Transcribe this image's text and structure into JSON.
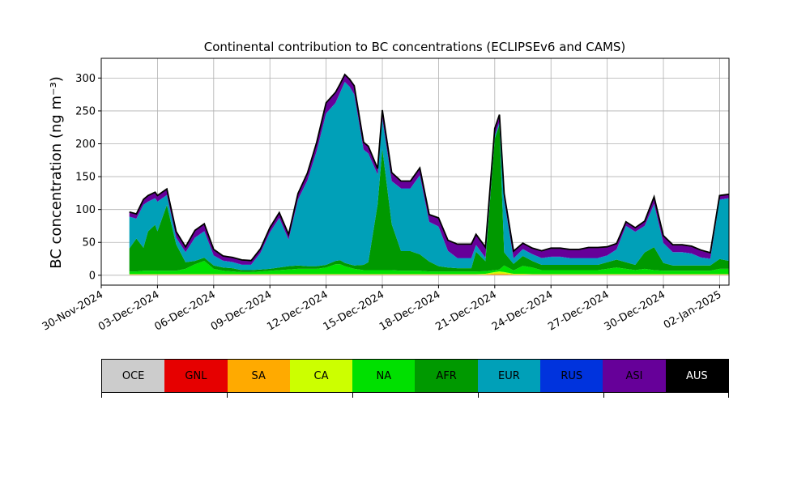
{
  "chart_data": {
    "type": "area",
    "title": "Continental contribution to BC concentrations (ECLIPSEv6 and CAMS)",
    "xlabel": "",
    "ylabel": "BC concentration (ng m⁻³)",
    "ylim": [
      -15,
      330
    ],
    "xlim": [
      "2024-11-30T00:00",
      "2025-01-02T12:00"
    ],
    "grid": true,
    "stacked": true,
    "yticks": [
      0,
      50,
      100,
      150,
      200,
      250,
      300
    ],
    "xticks": [
      "30-Nov-2024",
      "03-Dec-2024",
      "06-Dec-2024",
      "09-Dec-2024",
      "12-Dec-2024",
      "15-Dec-2024",
      "18-Dec-2024",
      "21-Dec-2024",
      "24-Dec-2024",
      "27-Dec-2024",
      "30-Dec-2024",
      "02-Jan-2025"
    ],
    "x": [
      "2024-12-01T12:00",
      "2024-12-01T21:00",
      "2024-12-02T06:00",
      "2024-12-02T12:00",
      "2024-12-02T21:00",
      "2024-12-03T00:00",
      "2024-12-03T12:00",
      "2024-12-04T00:00",
      "2024-12-04T12:00",
      "2024-12-05T00:00",
      "2024-12-05T12:00",
      "2024-12-06T00:00",
      "2024-12-06T12:00",
      "2024-12-07T00:00",
      "2024-12-07T12:00",
      "2024-12-08T00:00",
      "2024-12-08T12:00",
      "2024-12-09T00:00",
      "2024-12-09T12:00",
      "2024-12-10T00:00",
      "2024-12-10T12:00",
      "2024-12-11T00:00",
      "2024-12-11T12:00",
      "2024-12-12T00:00",
      "2024-12-12T12:00",
      "2024-12-12T18:00",
      "2024-12-13T00:00",
      "2024-12-13T06:00",
      "2024-12-13T12:00",
      "2024-12-14T00:00",
      "2024-12-14T06:00",
      "2024-12-14T18:00",
      "2024-12-15T00:00",
      "2024-12-15T12:00",
      "2024-12-16T00:00",
      "2024-12-16T12:00",
      "2024-12-17T00:00",
      "2024-12-17T12:00",
      "2024-12-18T00:00",
      "2024-12-18T12:00",
      "2024-12-19T00:00",
      "2024-12-19T18:00",
      "2024-12-20T00:00",
      "2024-12-20T12:00",
      "2024-12-21T00:00",
      "2024-12-21T06:00",
      "2024-12-21T12:00",
      "2024-12-22T00:00",
      "2024-12-22T12:00",
      "2024-12-23T00:00",
      "2024-12-23T12:00",
      "2024-12-24T00:00",
      "2024-12-24T12:00",
      "2024-12-25T00:00",
      "2024-12-25T12:00",
      "2024-12-26T00:00",
      "2024-12-26T12:00",
      "2024-12-27T00:00",
      "2024-12-27T12:00",
      "2024-12-28T00:00",
      "2024-12-28T12:00",
      "2024-12-29T00:00",
      "2024-12-29T12:00",
      "2024-12-30T00:00",
      "2024-12-30T12:00",
      "2024-12-31T00:00",
      "2024-12-31T12:00",
      "2025-01-01T00:00",
      "2025-01-01T12:00",
      "2025-01-02T00:00",
      "2025-01-02T12:00"
    ],
    "series": [
      {
        "name": "OCE",
        "color": "#cccccc",
        "values": [
          0.5,
          0.5,
          0.5,
          0.5,
          0.5,
          0.5,
          0.5,
          0.5,
          0.5,
          0.5,
          0.5,
          0.5,
          0.5,
          0.5,
          0.5,
          0.5,
          0.5,
          0.5,
          0.5,
          0.5,
          0.5,
          0.5,
          0.5,
          0.5,
          0.5,
          0.5,
          0.5,
          0.5,
          0.5,
          0.5,
          0.5,
          0.5,
          0.5,
          0.5,
          0.5,
          0.5,
          0.5,
          0.5,
          0.5,
          0.5,
          0.5,
          0.5,
          0.5,
          0.5,
          0.5,
          0.5,
          0.5,
          0.5,
          0.5,
          0.5,
          0.5,
          0.5,
          0.5,
          0.5,
          0.5,
          0.5,
          0.5,
          0.5,
          0.5,
          0.5,
          0.5,
          0.5,
          0.5,
          0.5,
          0.5,
          0.5,
          0.5,
          0.5,
          0.5,
          0.5,
          0.5
        ]
      },
      {
        "name": "GNL",
        "color": "#e60000",
        "values": [
          0.3,
          0.3,
          0.3,
          0.3,
          0.3,
          0.3,
          0.3,
          0.3,
          0.3,
          0.3,
          0.3,
          0.3,
          0.3,
          0.3,
          0.3,
          0.3,
          0.3,
          0.3,
          0.3,
          0.3,
          0.3,
          0.3,
          0.3,
          0.3,
          0.3,
          0.3,
          0.3,
          0.3,
          0.3,
          0.3,
          0.3,
          0.3,
          0.3,
          0.3,
          0.3,
          0.3,
          0.3,
          0.3,
          0.3,
          0.3,
          0.3,
          0.3,
          0.3,
          0.3,
          0.3,
          0.3,
          0.3,
          0.3,
          0.3,
          0.3,
          0.3,
          0.3,
          0.3,
          0.3,
          0.3,
          0.3,
          0.3,
          0.3,
          0.3,
          0.3,
          0.3,
          0.3,
          0.3,
          0.3,
          0.3,
          0.3,
          0.3,
          0.3,
          0.3,
          0.3,
          0.3
        ]
      },
      {
        "name": "SA",
        "color": "#ffaa00",
        "values": [
          0.5,
          0.5,
          0.5,
          0.5,
          0.5,
          0.5,
          0.5,
          0.5,
          0.5,
          0.5,
          0.5,
          0.5,
          0.5,
          0.5,
          0.5,
          0.5,
          0.5,
          0.5,
          0.5,
          0.5,
          0.5,
          0.5,
          0.5,
          0.5,
          0.5,
          0.5,
          0.5,
          0.5,
          0.5,
          0.5,
          0.5,
          0.5,
          0.5,
          0.5,
          0.5,
          0.5,
          0.5,
          0.5,
          0.5,
          0.5,
          0.5,
          0.5,
          0.5,
          0.5,
          2,
          2,
          2,
          0.5,
          0.5,
          0.5,
          0.5,
          0.5,
          0.5,
          0.5,
          0.5,
          0.5,
          0.5,
          0.5,
          0.5,
          0.5,
          0.5,
          0.5,
          0.5,
          0.5,
          0.5,
          0.5,
          0.5,
          0.5,
          0.5,
          0.5,
          0.5
        ]
      },
      {
        "name": "CA",
        "color": "#ccff00",
        "values": [
          0.5,
          0.5,
          0.5,
          0.5,
          0.5,
          0.5,
          0.5,
          0.5,
          0.5,
          0.5,
          0.5,
          0.5,
          0.5,
          0.5,
          0.5,
          0.5,
          0.5,
          0.5,
          0.5,
          0.5,
          0.5,
          0.5,
          0.5,
          0.5,
          0.5,
          0.5,
          0.5,
          0.5,
          0.5,
          0.5,
          0.5,
          0.5,
          0.5,
          0.5,
          0.5,
          0.5,
          0.5,
          0.5,
          0.5,
          0.5,
          0.5,
          0.5,
          0.5,
          1,
          2,
          3,
          2,
          1,
          1,
          0.5,
          0.5,
          0.5,
          0.5,
          0.5,
          0.5,
          0.5,
          0.5,
          0.5,
          0.5,
          0.5,
          0.5,
          0.5,
          0.5,
          0.5,
          0.5,
          0.5,
          0.5,
          0.5,
          0.5,
          0.5,
          0.5
        ]
      },
      {
        "name": "NA",
        "color": "#00e000",
        "values": [
          4,
          4,
          5,
          5,
          5,
          5,
          5,
          5,
          8,
          15,
          20,
          8,
          5,
          4,
          3,
          3,
          4,
          5,
          6,
          7,
          8,
          8,
          8,
          10,
          15,
          15,
          12,
          10,
          8,
          6,
          6,
          6,
          6,
          6,
          5,
          5,
          5,
          4,
          4,
          4,
          4,
          4,
          4,
          4,
          3,
          3,
          10,
          5,
          12,
          10,
          6,
          6,
          6,
          6,
          6,
          6,
          6,
          8,
          10,
          8,
          6,
          8,
          6,
          5,
          5,
          5,
          5,
          5,
          5,
          8,
          8
        ]
      },
      {
        "name": "AFR",
        "color": "#009900",
        "values": [
          35,
          50,
          35,
          60,
          70,
          60,
          100,
          40,
          10,
          5,
          5,
          5,
          5,
          5,
          3,
          3,
          3,
          3,
          4,
          5,
          5,
          4,
          4,
          4,
          5,
          6,
          5,
          5,
          5,
          8,
          12,
          100,
          185,
          70,
          30,
          30,
          25,
          15,
          8,
          6,
          5,
          5,
          30,
          15,
          200,
          220,
          20,
          10,
          15,
          10,
          8,
          8,
          8,
          8,
          8,
          8,
          8,
          10,
          12,
          10,
          8,
          25,
          35,
          12,
          8,
          8,
          8,
          8,
          8,
          15,
          12
        ]
      },
      {
        "name": "EUR",
        "color": "#00a0b8",
        "values": [
          48,
          30,
          65,
          45,
          40,
          45,
          15,
          10,
          15,
          35,
          40,
          15,
          10,
          9,
          8,
          8,
          25,
          55,
          75,
          40,
          100,
          130,
          175,
          230,
          240,
          255,
          275,
          270,
          260,
          175,
          165,
          45,
          45,
          65,
          95,
          95,
          120,
          60,
          60,
          25,
          15,
          15,
          10,
          5,
          4,
          4,
          80,
          8,
          10,
          10,
          10,
          12,
          12,
          10,
          10,
          10,
          10,
          10,
          15,
          55,
          50,
          40,
          65,
          30,
          20,
          20,
          18,
          12,
          10,
          90,
          95
        ]
      },
      {
        "name": "RUS",
        "color": "#0033dd",
        "values": [
          0.5,
          0.5,
          0.5,
          0.5,
          0.5,
          0.5,
          0.5,
          0.5,
          0.5,
          0.5,
          0.5,
          0.5,
          0.5,
          0.5,
          0.5,
          0.5,
          0.5,
          0.5,
          0.5,
          0.5,
          0.5,
          0.5,
          0.5,
          0.5,
          0.5,
          0.5,
          0.5,
          0.5,
          0.5,
          0.5,
          0.5,
          0.5,
          0.5,
          0.5,
          0.5,
          0.5,
          0.5,
          0.5,
          0.5,
          0.5,
          0.5,
          0.5,
          0.5,
          0.5,
          0.5,
          0.5,
          0.5,
          0.5,
          0.5,
          0.5,
          0.5,
          0.5,
          0.5,
          0.5,
          0.5,
          0.5,
          0.5,
          0.5,
          0.5,
          0.5,
          0.5,
          0.5,
          0.5,
          0.5,
          0.5,
          0.5,
          0.5,
          0.5,
          0.5,
          0.5,
          0.5
        ]
      },
      {
        "name": "ASI",
        "color": "#660099",
        "values": [
          6,
          6,
          7,
          8,
          8,
          8,
          8,
          8,
          7,
          10,
          10,
          8,
          6,
          6,
          6,
          5,
          5,
          6,
          7,
          7,
          8,
          10,
          12,
          15,
          15,
          12,
          10,
          10,
          12,
          10,
          10,
          8,
          12,
          12,
          10,
          10,
          10,
          10,
          12,
          15,
          20,
          20,
          15,
          15,
          10,
          10,
          8,
          10,
          8,
          8,
          10,
          12,
          12,
          12,
          12,
          15,
          15,
          12,
          8,
          5,
          5,
          6,
          10,
          10,
          10,
          10,
          10,
          10,
          8,
          5,
          5
        ]
      },
      {
        "name": "AUS",
        "color": "#000000",
        "values": [
          1,
          1,
          1,
          1,
          1,
          1,
          1,
          1,
          1,
          1,
          1,
          1,
          1,
          1,
          1,
          1,
          1,
          1,
          1,
          1,
          1,
          1,
          1,
          1,
          1,
          1,
          1,
          1,
          1,
          1,
          1,
          1,
          1,
          1,
          1,
          1,
          1,
          1,
          1,
          1,
          1,
          1,
          1,
          1,
          1,
          1,
          1,
          1,
          1,
          1,
          1,
          1,
          1,
          1,
          1,
          1,
          1,
          1,
          1,
          1,
          1,
          1,
          1,
          1,
          1,
          1,
          1,
          1,
          1,
          1,
          1
        ]
      }
    ],
    "legend": {
      "placement": "below",
      "entries": [
        {
          "label": "OCE",
          "color": "#cccccc"
        },
        {
          "label": "GNL",
          "color": "#e60000"
        },
        {
          "label": "SA",
          "color": "#ffaa00"
        },
        {
          "label": "CA",
          "color": "#ccff00"
        },
        {
          "label": "NA",
          "color": "#00e000"
        },
        {
          "label": "AFR",
          "color": "#009900"
        },
        {
          "label": "EUR",
          "color": "#00a0b8"
        },
        {
          "label": "RUS",
          "color": "#0033dd"
        },
        {
          "label": "ASI",
          "color": "#660099"
        },
        {
          "label": "AUS",
          "color": "#000000"
        }
      ]
    }
  }
}
